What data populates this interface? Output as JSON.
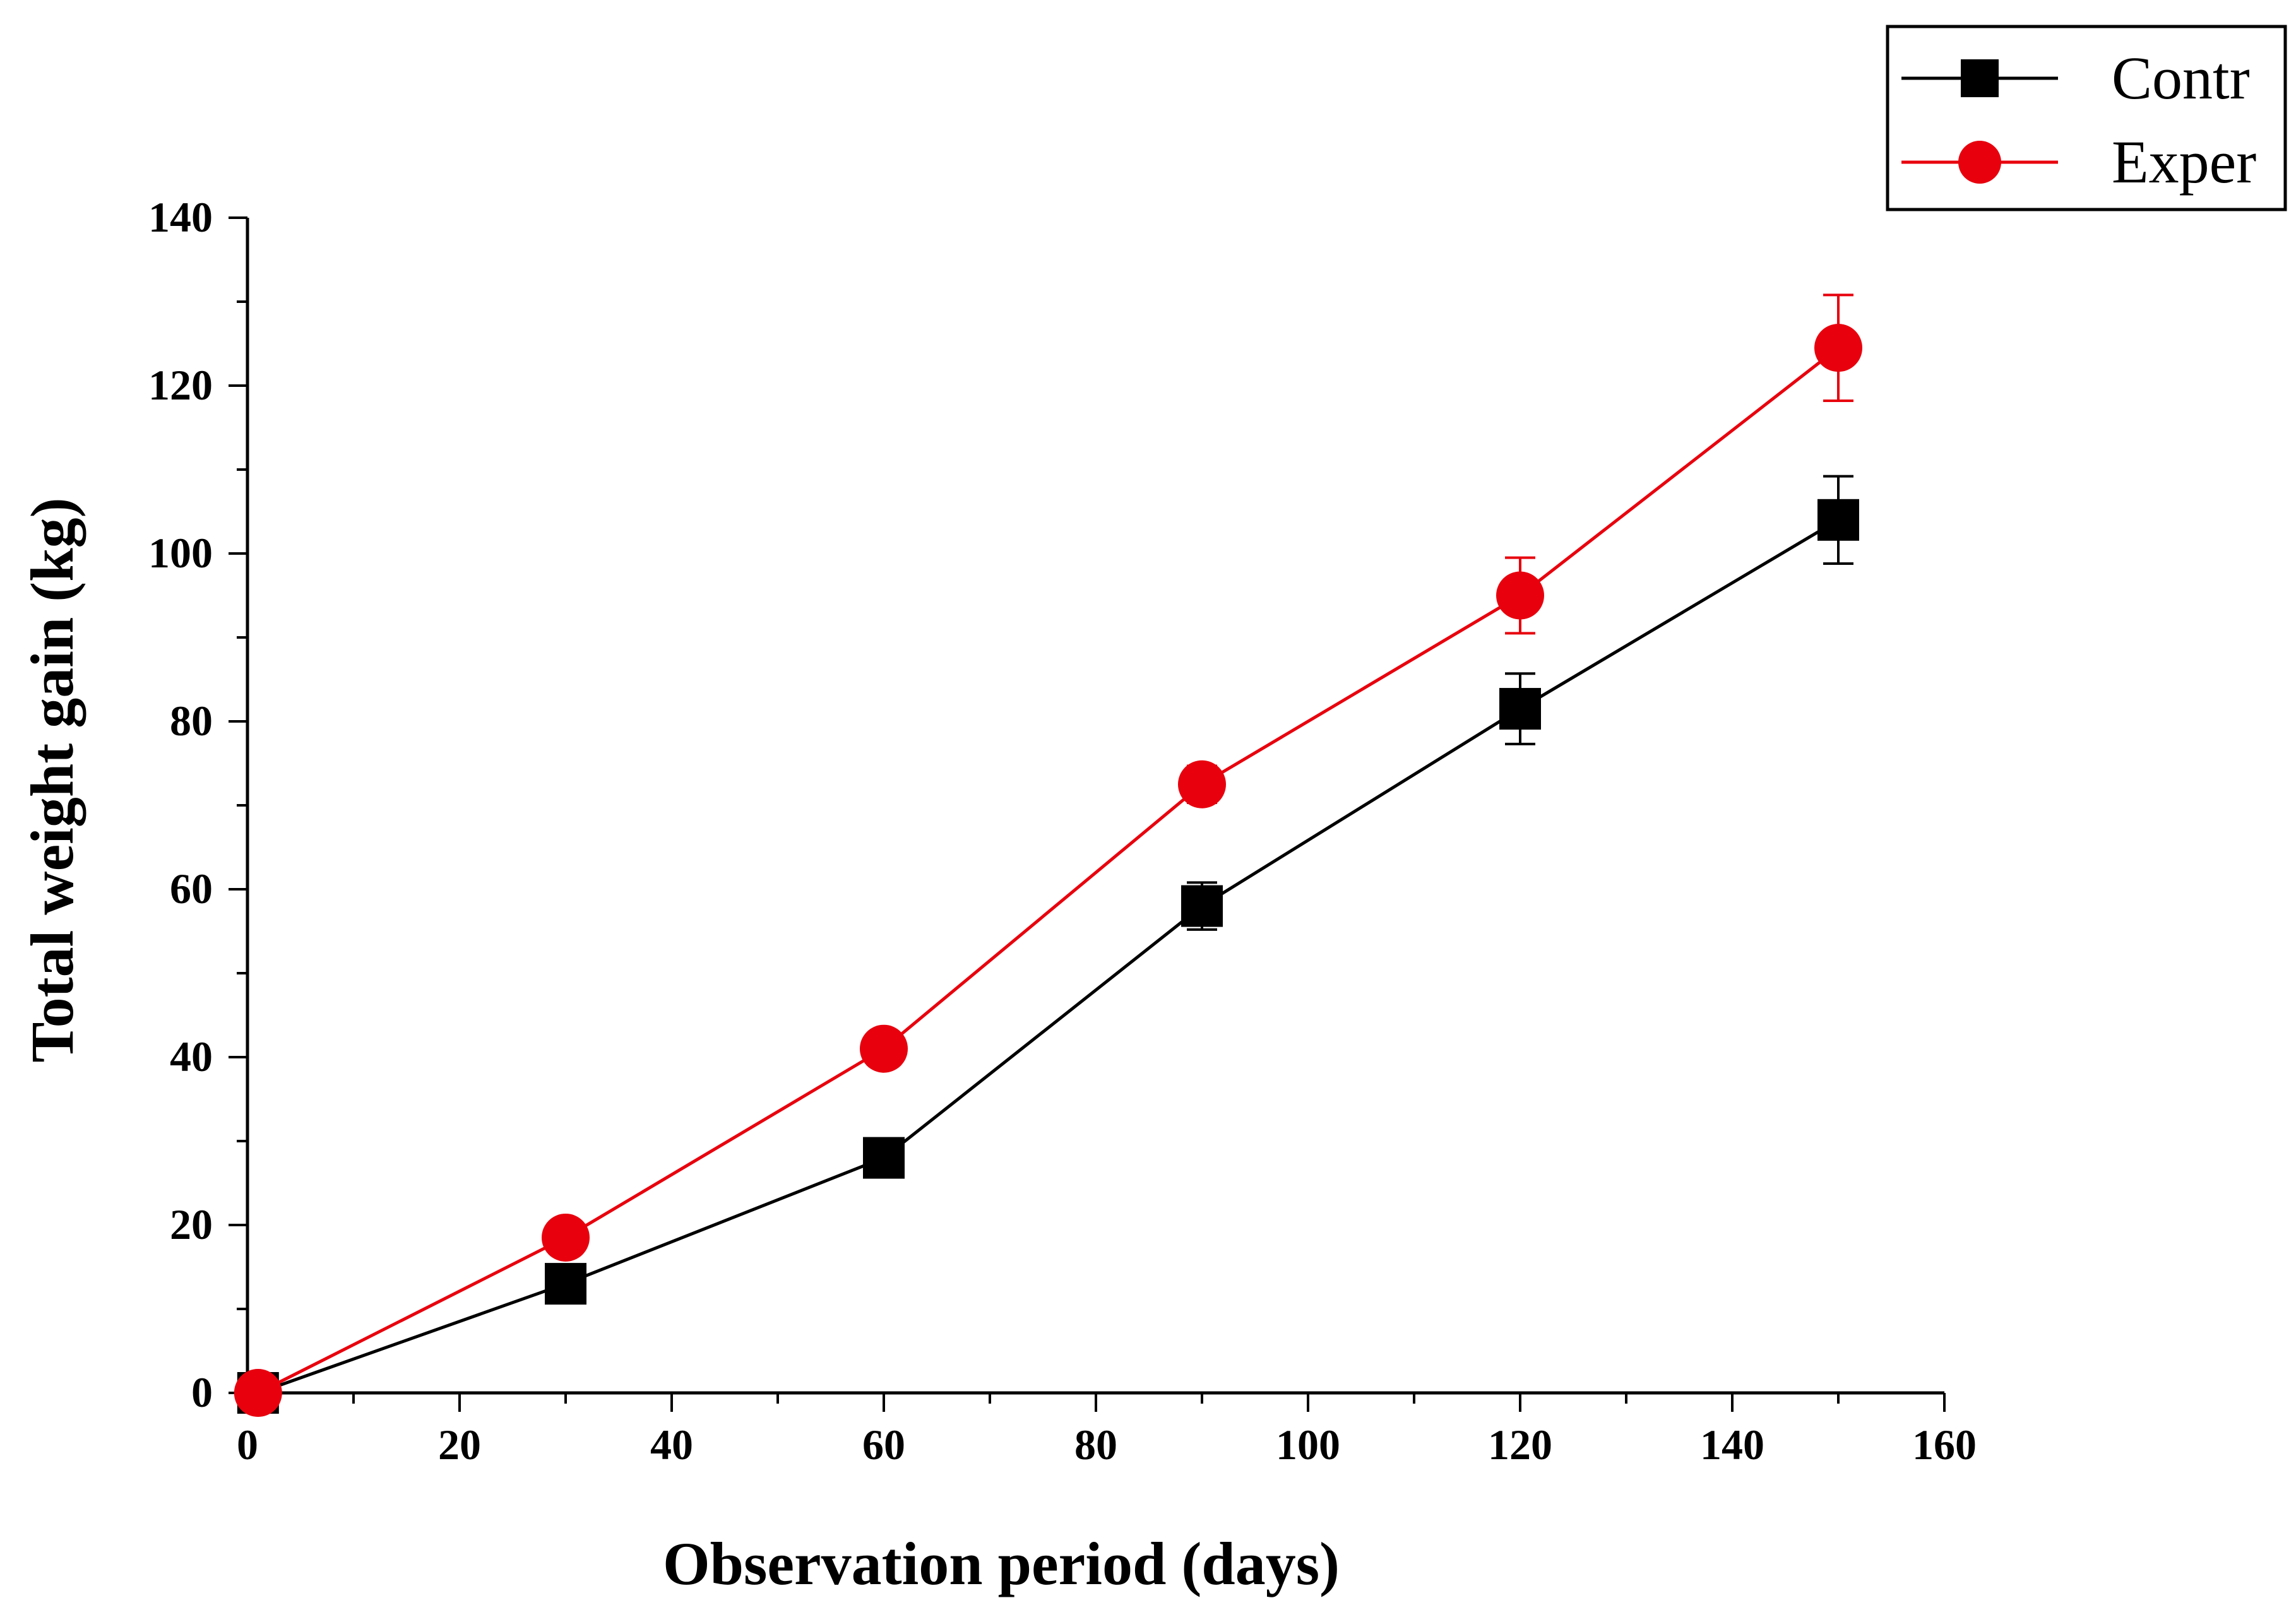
{
  "chart_data": {
    "type": "line",
    "title": "",
    "xlabel": "Observation period (days)",
    "ylabel": "Total weight gain (kg)",
    "xlim": [
      0,
      160
    ],
    "ylim": [
      0,
      140
    ],
    "x_ticks": [
      0,
      20,
      40,
      60,
      80,
      100,
      120,
      140,
      160
    ],
    "y_ticks": [
      0,
      20,
      40,
      60,
      80,
      100,
      120,
      140
    ],
    "x_tick_labels": [
      "0",
      "20",
      "40",
      "60",
      "80",
      "100",
      "120",
      "140",
      "160"
    ],
    "y_tick_labels": [
      "0",
      "20",
      "40",
      "60",
      "80",
      "100",
      "120",
      "140"
    ],
    "grid": false,
    "legend_position": "top-right",
    "series": [
      {
        "name": "Contr",
        "color": "#000000",
        "marker": "square",
        "points": [
          {
            "x": 1,
            "y": 0,
            "err": 0
          },
          {
            "x": 30,
            "y": 13,
            "err": 0.8
          },
          {
            "x": 60,
            "y": 28,
            "err": 1.2
          },
          {
            "x": 90,
            "y": 58,
            "err": 2.8
          },
          {
            "x": 120,
            "y": 81.5,
            "err": 4.2
          },
          {
            "x": 150,
            "y": 104,
            "err": 5.2
          }
        ]
      },
      {
        "name": "Exper",
        "color": "#e8000d",
        "marker": "circle",
        "points": [
          {
            "x": 1,
            "y": 0,
            "err": 0
          },
          {
            "x": 30,
            "y": 18.5,
            "err": 0.8
          },
          {
            "x": 60,
            "y": 41,
            "err": 1.2
          },
          {
            "x": 90,
            "y": 72.5,
            "err": 2.2
          },
          {
            "x": 120,
            "y": 95,
            "err": 4.5
          },
          {
            "x": 150,
            "y": 124.5,
            "err": 6.3
          }
        ]
      }
    ]
  }
}
